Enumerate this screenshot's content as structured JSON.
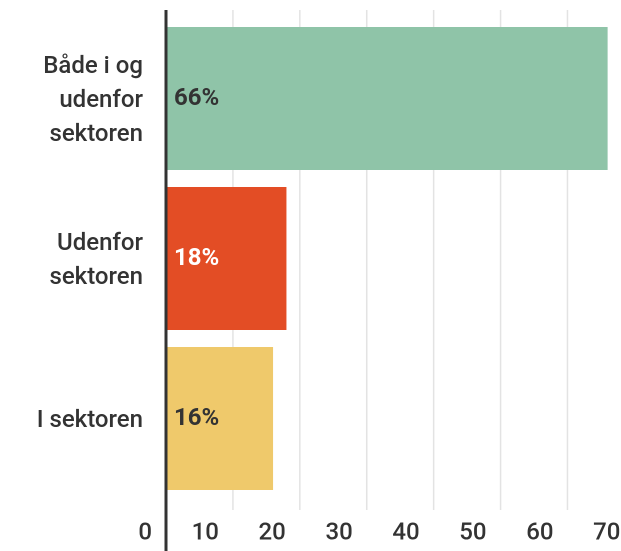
{
  "chart_data": {
    "type": "bar",
    "orientation": "horizontal",
    "categories": [
      "Både i og udenfor sektoren",
      "Udenfor sektoren",
      "I sektoren"
    ],
    "values": [
      66,
      18,
      16
    ],
    "value_labels": [
      "66%",
      "18%",
      "16%"
    ],
    "colors": [
      "#8fc4a8",
      "#e34d25",
      "#efc96b"
    ],
    "value_label_colors": [
      "#333333",
      "#ffffff",
      "#333333"
    ],
    "xlim": [
      0,
      68
    ],
    "xticks": [
      0,
      10,
      20,
      30,
      40,
      50,
      60,
      70
    ],
    "grid": true
  }
}
